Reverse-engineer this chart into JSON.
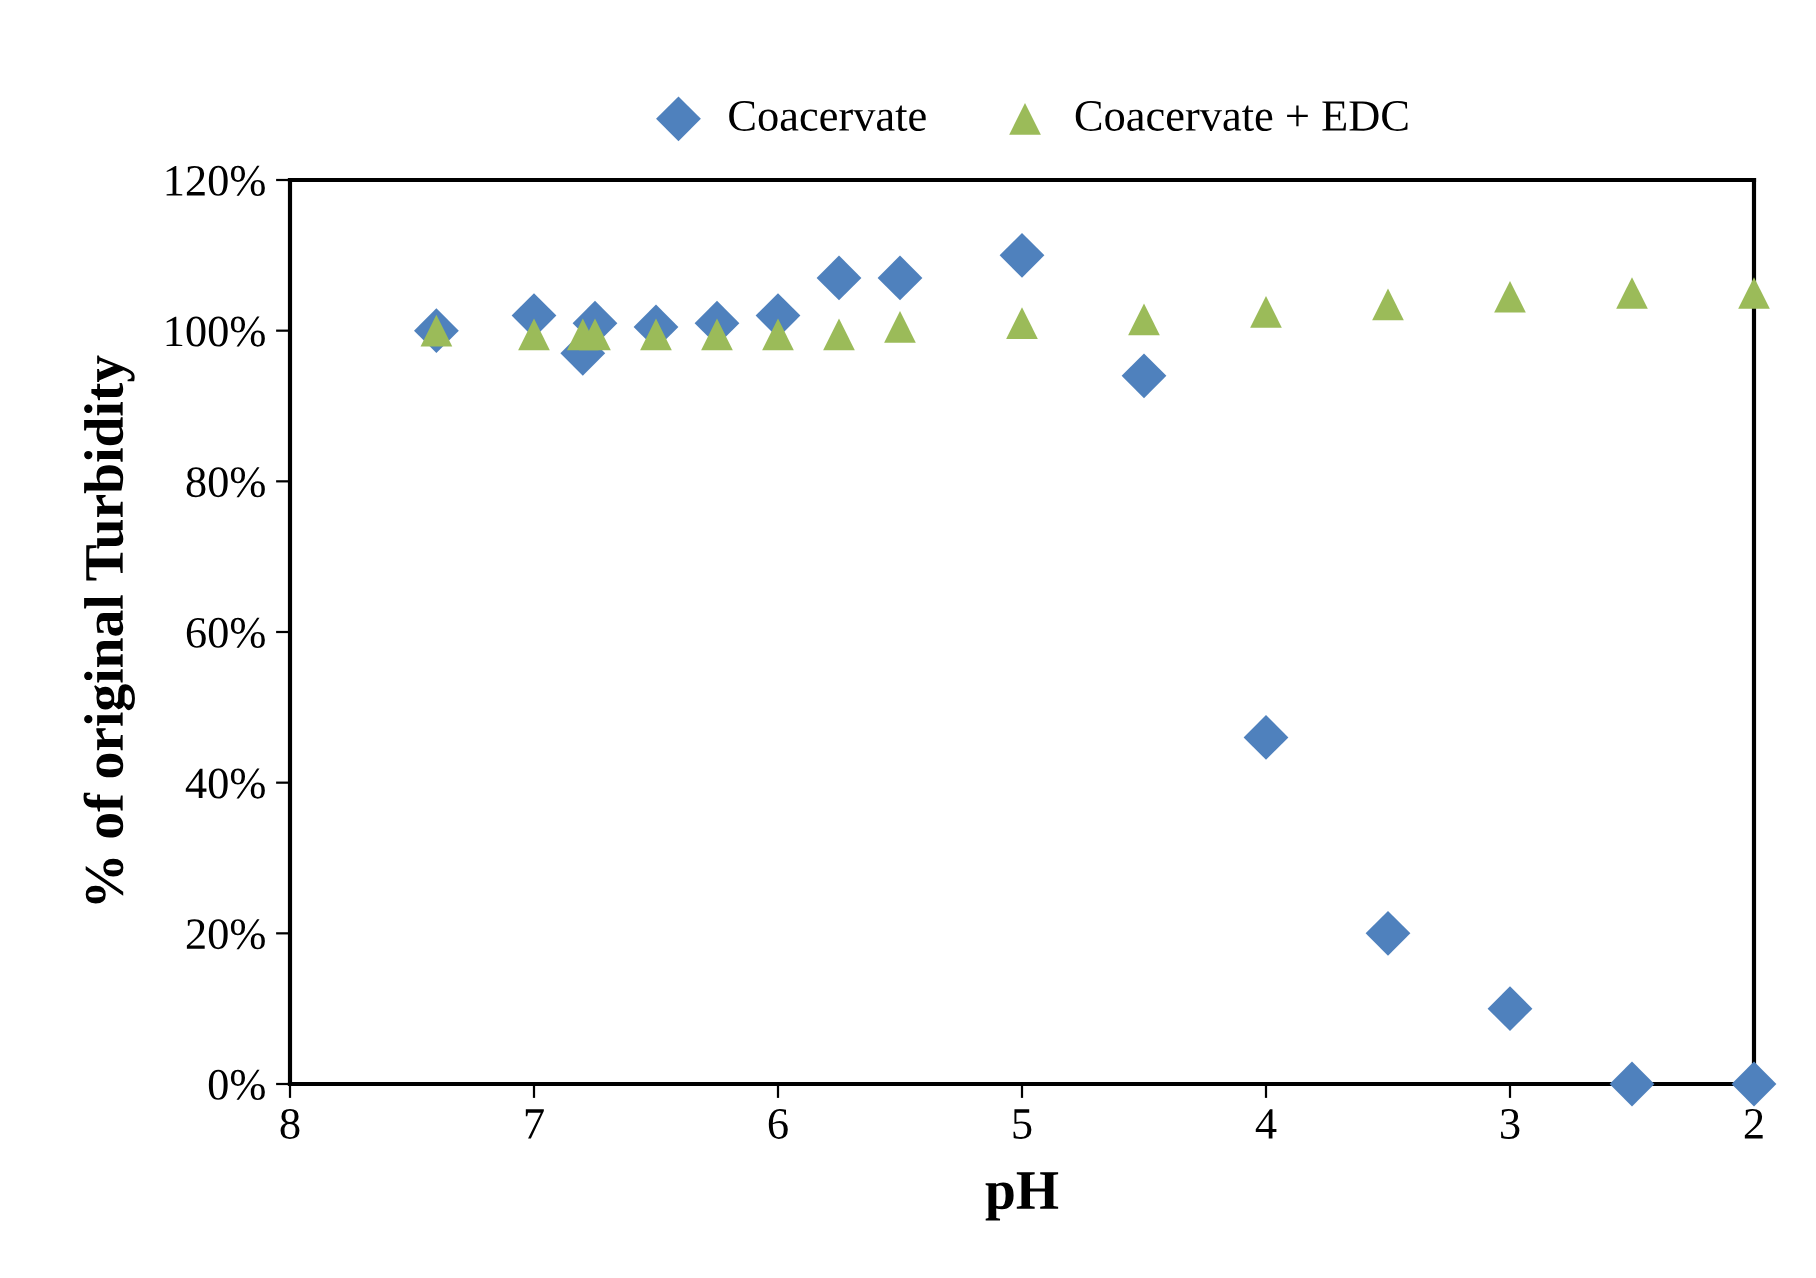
{
  "chart_data": {
    "type": "scatter",
    "xlabel": "pH",
    "ylabel": "% of original Turbidity",
    "series": [
      {
        "name": "Coacervate",
        "color": "#4f81bd",
        "marker": "diamond",
        "x": [
          7.4,
          7.0,
          6.8,
          6.75,
          6.5,
          6.25,
          6.0,
          5.75,
          5.5,
          5.0,
          4.5,
          4.0,
          3.5,
          3.0,
          2.5,
          2.0
        ],
        "values": [
          100,
          102,
          97,
          101,
          100.5,
          101,
          102,
          107,
          107,
          110,
          94,
          46,
          20,
          10,
          0,
          0
        ]
      },
      {
        "name": "Coacervate + EDC",
        "color": "#9bbb59",
        "marker": "triangle",
        "x": [
          7.4,
          7.0,
          6.8,
          6.75,
          6.5,
          6.25,
          6.0,
          5.75,
          5.5,
          5.0,
          4.5,
          4.0,
          3.5,
          3.0,
          2.5,
          2.0
        ],
        "values": [
          100,
          99.5,
          99.5,
          99.5,
          99.5,
          99.5,
          99.5,
          99.5,
          100.5,
          101,
          101.5,
          102.5,
          103.5,
          104.5,
          105,
          105
        ]
      }
    ],
    "xlim": [
      8,
      2
    ],
    "xticks": [
      8,
      7,
      6,
      5,
      4,
      3,
      2
    ],
    "ylim": [
      0,
      120
    ],
    "yticks": [
      {
        "value": 0,
        "label": "0%"
      },
      {
        "value": 20,
        "label": "20%"
      },
      {
        "value": 40,
        "label": "40%"
      },
      {
        "value": 60,
        "label": "60%"
      },
      {
        "value": 80,
        "label": "80%"
      },
      {
        "value": 100,
        "label": "100%"
      },
      {
        "value": 120,
        "label": "120%"
      }
    ],
    "grid": false,
    "legend": "top"
  }
}
